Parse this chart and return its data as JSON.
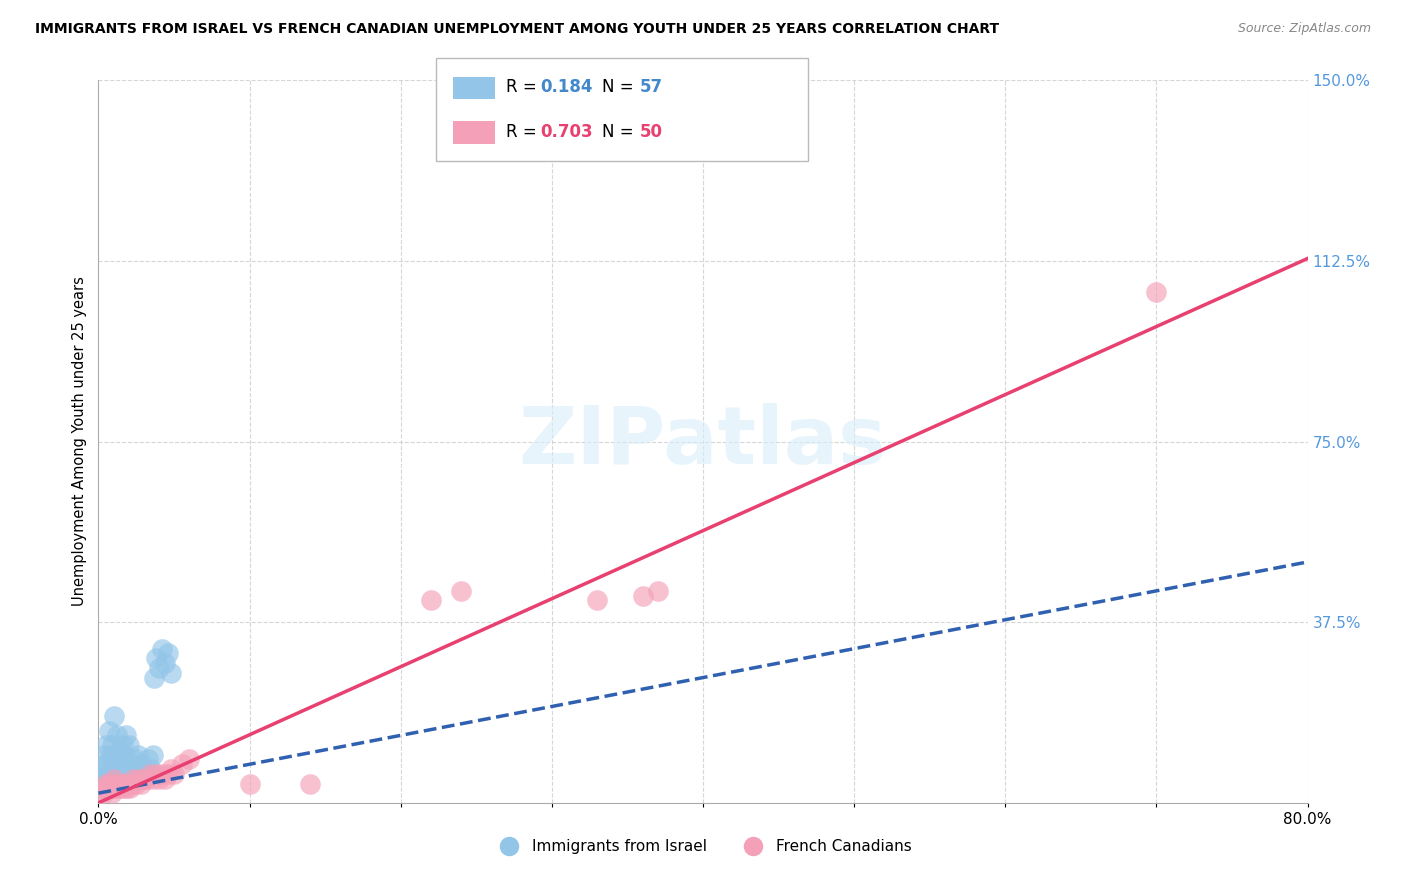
{
  "title": "IMMIGRANTS FROM ISRAEL VS FRENCH CANADIAN UNEMPLOYMENT AMONG YOUTH UNDER 25 YEARS CORRELATION CHART",
  "source": "Source: ZipAtlas.com",
  "ylabel": "Unemployment Among Youth under 25 years",
  "xlim": [
    0.0,
    0.8
  ],
  "ylim": [
    0.0,
    1.5
  ],
  "xticks": [
    0.0,
    0.1,
    0.2,
    0.3,
    0.4,
    0.5,
    0.6,
    0.7,
    0.8
  ],
  "xticklabels": [
    "0.0%",
    "",
    "",
    "",
    "",
    "",
    "",
    "",
    "80.0%"
  ],
  "yticks": [
    0.0,
    0.375,
    0.75,
    1.125,
    1.5
  ],
  "yticklabels": [
    "",
    "37.5%",
    "75.0%",
    "112.5%",
    "150.0%"
  ],
  "r_blue": "0.184",
  "n_blue": "57",
  "r_pink": "0.703",
  "n_pink": "50",
  "blue_color": "#92C5E8",
  "pink_color": "#F4A0B8",
  "blue_line_color": "#3060B0",
  "pink_line_color": "#E84070",
  "blue_label_color": "#4488CC",
  "pink_label_color": "#E84070",
  "ytick_color": "#5599DD",
  "watermark_color": "#D8EEFB",
  "watermark": "ZIPatlas",
  "legend_labels": [
    "Immigrants from Israel",
    "French Canadians"
  ],
  "grid_color": "#CCCCCC",
  "background_color": "#FFFFFF",
  "blue_scatter_x": [
    0.002,
    0.003,
    0.004,
    0.004,
    0.005,
    0.005,
    0.006,
    0.006,
    0.007,
    0.007,
    0.008,
    0.008,
    0.009,
    0.009,
    0.01,
    0.01,
    0.01,
    0.011,
    0.011,
    0.012,
    0.012,
    0.013,
    0.013,
    0.014,
    0.014,
    0.015,
    0.015,
    0.016,
    0.016,
    0.017,
    0.017,
    0.018,
    0.018,
    0.019,
    0.02,
    0.02,
    0.021,
    0.022,
    0.023,
    0.024,
    0.025,
    0.026,
    0.027,
    0.028,
    0.029,
    0.03,
    0.032,
    0.033,
    0.035,
    0.036,
    0.037,
    0.038,
    0.04,
    0.042,
    0.044,
    0.046,
    0.048
  ],
  "blue_scatter_y": [
    0.04,
    0.08,
    0.05,
    0.1,
    0.06,
    0.12,
    0.03,
    0.08,
    0.05,
    0.15,
    0.04,
    0.1,
    0.06,
    0.12,
    0.04,
    0.08,
    0.18,
    0.05,
    0.1,
    0.06,
    0.14,
    0.04,
    0.09,
    0.05,
    0.11,
    0.04,
    0.09,
    0.05,
    0.12,
    0.04,
    0.1,
    0.05,
    0.14,
    0.04,
    0.06,
    0.12,
    0.05,
    0.08,
    0.06,
    0.09,
    0.05,
    0.1,
    0.06,
    0.08,
    0.05,
    0.07,
    0.06,
    0.09,
    0.07,
    0.1,
    0.26,
    0.3,
    0.28,
    0.32,
    0.29,
    0.31,
    0.27
  ],
  "pink_scatter_x": [
    0.002,
    0.003,
    0.004,
    0.005,
    0.005,
    0.006,
    0.007,
    0.007,
    0.008,
    0.009,
    0.009,
    0.01,
    0.01,
    0.011,
    0.012,
    0.013,
    0.014,
    0.015,
    0.016,
    0.017,
    0.018,
    0.019,
    0.02,
    0.021,
    0.022,
    0.023,
    0.025,
    0.026,
    0.028,
    0.03,
    0.032,
    0.034,
    0.036,
    0.038,
    0.04,
    0.042,
    0.044,
    0.046,
    0.048,
    0.05,
    0.055,
    0.06,
    0.22,
    0.24,
    0.33,
    0.36,
    0.37,
    0.7,
    0.1,
    0.14
  ],
  "pink_scatter_y": [
    0.02,
    0.03,
    0.02,
    0.03,
    0.04,
    0.03,
    0.03,
    0.04,
    0.03,
    0.02,
    0.04,
    0.03,
    0.05,
    0.03,
    0.04,
    0.03,
    0.04,
    0.03,
    0.04,
    0.03,
    0.04,
    0.03,
    0.04,
    0.03,
    0.04,
    0.05,
    0.04,
    0.05,
    0.04,
    0.05,
    0.05,
    0.06,
    0.05,
    0.06,
    0.05,
    0.06,
    0.05,
    0.06,
    0.07,
    0.06,
    0.08,
    0.09,
    0.42,
    0.44,
    0.42,
    0.43,
    0.44,
    1.06,
    0.04,
    0.04
  ],
  "blue_line_x0": 0.0,
  "blue_line_y0": 0.02,
  "blue_line_x1": 0.8,
  "blue_line_y1": 0.5,
  "pink_line_x0": 0.0,
  "pink_line_y0": 0.0,
  "pink_line_x1": 0.8,
  "pink_line_y1": 1.13
}
